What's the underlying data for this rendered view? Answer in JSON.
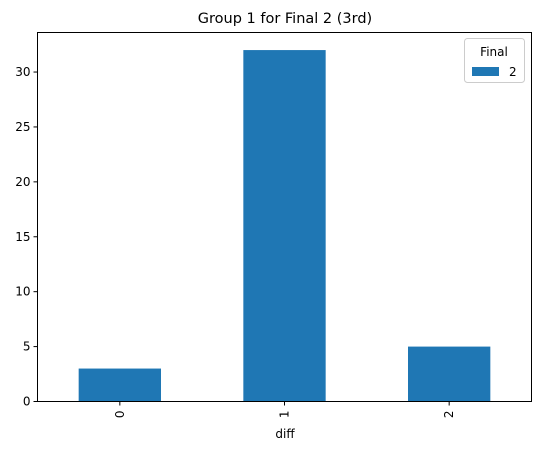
{
  "chart_data": {
    "type": "bar",
    "title": "Group 1 for Final 2 (3rd)",
    "xlabel": "diff",
    "ylabel": "",
    "categories": [
      "0",
      "1",
      "2"
    ],
    "series": [
      {
        "name": "2",
        "values": [
          3,
          32,
          5
        ],
        "color": "#1f77b4"
      }
    ],
    "ylim": [
      0,
      33.6
    ],
    "yticks": [
      0,
      5,
      10,
      15,
      20,
      25,
      30
    ],
    "legend": {
      "title": "Final",
      "placement": "top-right"
    },
    "grid": false
  }
}
